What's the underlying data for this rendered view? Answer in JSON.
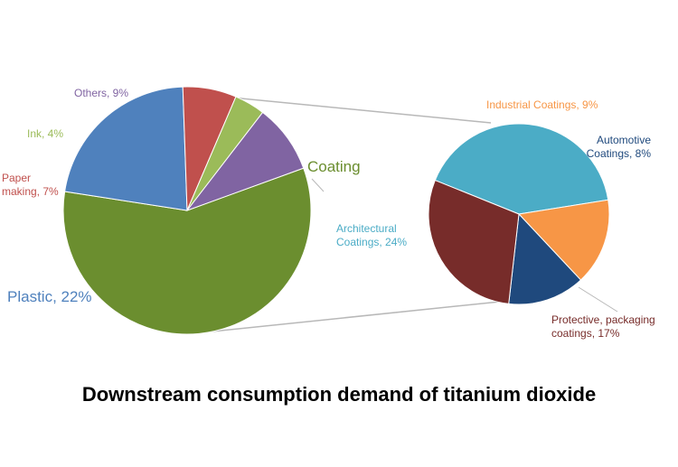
{
  "caption": "Downstream consumption demand of titanium dioxide",
  "chart_data": [
    {
      "type": "pie",
      "slices": [
        {
          "label": "Coating",
          "value": 58,
          "color": "#6b8e2f"
        },
        {
          "label": "Plastic, 22%",
          "value": 22,
          "color": "#4f81bd"
        },
        {
          "label": "Paper making, 7%",
          "value": 7,
          "color": "#c0504d"
        },
        {
          "label": "Ink, 4%",
          "value": 4,
          "color": "#9bbb59"
        },
        {
          "label": "Others, 9%",
          "value": 9,
          "color": "#8064a2"
        }
      ]
    },
    {
      "type": "pie",
      "slices": [
        {
          "label": "Architectural Coatings, 24%",
          "value": 24,
          "color": "#4bacc6"
        },
        {
          "label": "Industrial Coatings, 9%",
          "value": 9,
          "color": "#f79646"
        },
        {
          "label": "Automotive Coatings, 8%",
          "value": 8,
          "color": "#1f497d"
        },
        {
          "label": "Protective, packaging coatings, 17%",
          "value": 17,
          "color": "#772c2a"
        }
      ]
    }
  ]
}
